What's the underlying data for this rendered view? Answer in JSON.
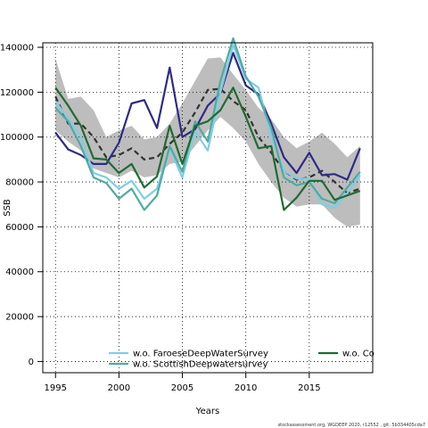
{
  "chart_data": {
    "type": "line",
    "xlabel": "Years",
    "ylabel": "SSB",
    "xlim": [
      1994,
      2020
    ],
    "ylim": [
      -5000,
      142000
    ],
    "x_ticks": [
      1995,
      2000,
      2005,
      2010,
      2015
    ],
    "y_ticks": [
      0,
      20000,
      40000,
      60000,
      80000,
      100000,
      120000,
      140000
    ],
    "grid": true,
    "legend_position": "bottom",
    "x": [
      1995,
      1996,
      1997,
      1998,
      1999,
      2000,
      2001,
      2002,
      2003,
      2004,
      2005,
      2006,
      2007,
      2008,
      2009,
      2010,
      2011,
      2012,
      2013,
      2014,
      2015,
      2016,
      2017,
      2018,
      2019
    ],
    "band": {
      "upper": [
        135000,
        117000,
        118000,
        112000,
        100000,
        103000,
        105000,
        99000,
        100000,
        106000,
        115000,
        125000,
        135000,
        135500,
        128000,
        121000,
        113000,
        108000,
        100000,
        95000,
        98000,
        102000,
        97000,
        91000,
        96000
      ],
      "lower": [
        103000,
        98000,
        94000,
        86000,
        84000,
        82000,
        85000,
        82000,
        83000,
        88000,
        89000,
        96000,
        103000,
        109000,
        104000,
        98000,
        88000,
        80000,
        73000,
        69000,
        70000,
        70000,
        64000,
        60000,
        61000
      ],
      "color": "#bdbdbd"
    },
    "series": [
      {
        "color": "#333333",
        "dashed": true,
        "values": [
          118000,
          106000,
          106000,
          100000,
          91000,
          92000,
          95000,
          90000,
          91000,
          97000,
          102000,
          111000,
          121000,
          121500,
          116000,
          112000,
          100000,
          93000,
          85000,
          81000,
          82000,
          85000,
          80000,
          75000,
          77000
        ]
      },
      {
        "color": "#2e2a86",
        "dashed": false,
        "values": [
          102000,
          94500,
          92000,
          88000,
          88000,
          97500,
          115000,
          116500,
          104000,
          131000,
          100000,
          103500,
          114000,
          119500,
          137500,
          123000,
          119000,
          106000,
          91000,
          84000,
          93000,
          83000,
          83500,
          81000,
          95000
        ]
      },
      {
        "name": "w.o. FaroeseDeepWaterSurvey",
        "color": "#7ecde6",
        "dashed": false,
        "values": [
          116000,
          108000,
          100000,
          84000,
          82000,
          77000,
          80500,
          72500,
          77000,
          95000,
          82000,
          102500,
          94000,
          120000,
          141000,
          126000,
          122000,
          100000,
          85000,
          81500,
          81500,
          70000,
          68500,
          75000,
          83000
        ]
      },
      {
        "name": "w.o. ScottishDeepwatersurvey",
        "color": "#4faba0",
        "dashed": false,
        "values": [
          113000,
          107000,
          96000,
          82000,
          79500,
          72500,
          77000,
          67500,
          74000,
          96000,
          84500,
          107000,
          98000,
          125000,
          144000,
          127000,
          118000,
          104000,
          82000,
          78500,
          80000,
          72500,
          70500,
          77500,
          84500
        ]
      },
      {
        "name": "w.o. Co",
        "color": "#1f6b32",
        "dashed": false,
        "values": [
          122000,
          114000,
          105000,
          90500,
          90000,
          84000,
          88000,
          77500,
          82500,
          105000,
          88000,
          105000,
          107000,
          112000,
          122000,
          109000,
          95000,
          96000,
          67500,
          73000,
          80500,
          80500,
          72000,
          74000,
          76000
        ]
      }
    ]
  },
  "legend": [
    {
      "label": "w.o. FaroeseDeepWaterSurvey",
      "color": "#7ecde6"
    },
    {
      "label": "w.o. ScottishDeepwatersurvey",
      "color": "#4faba0"
    },
    {
      "label": "w.o. Co",
      "color": "#1f6b32"
    }
  ],
  "footer": "stockassessment.org, WGDEEP 2020, r12552 , git: 5b334405cda7"
}
